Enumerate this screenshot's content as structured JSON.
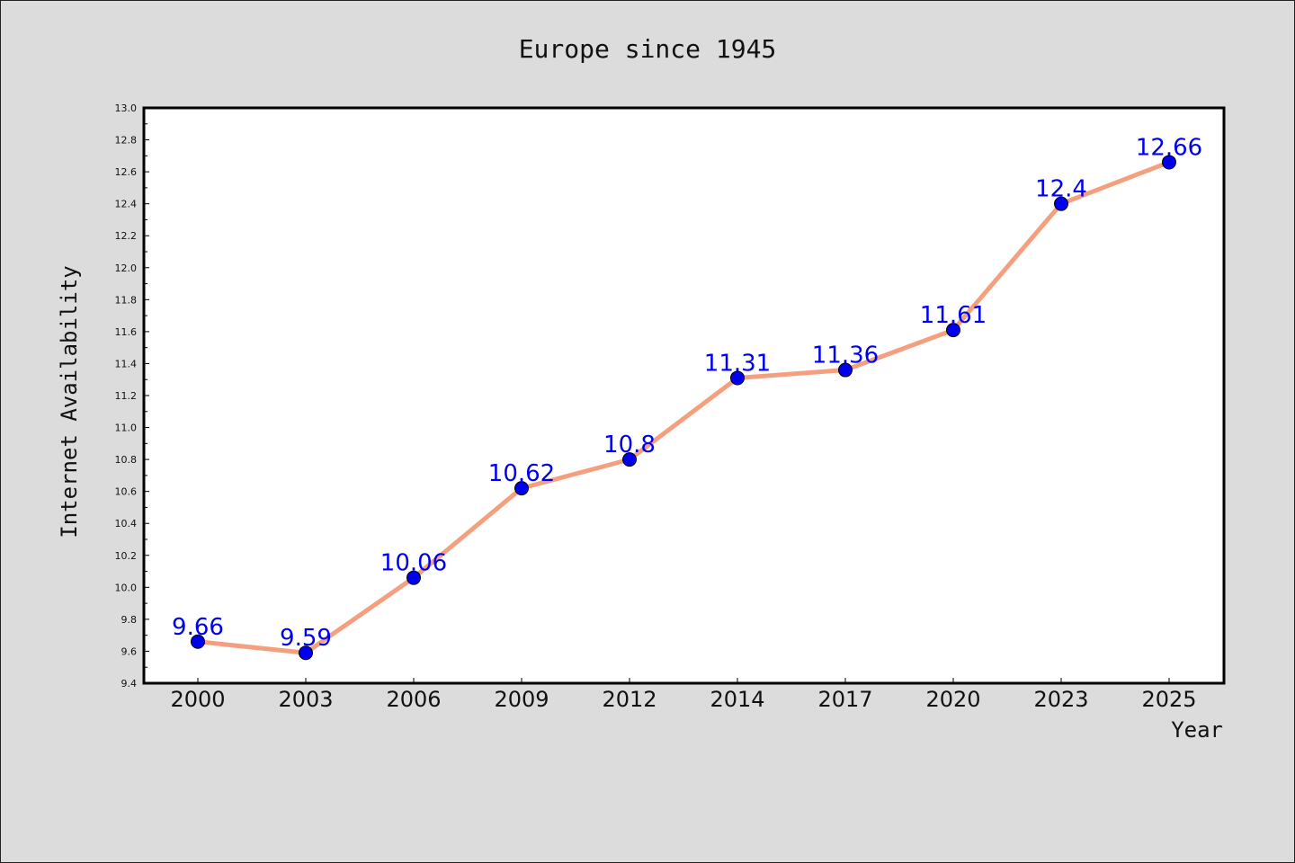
{
  "chart_data": {
    "type": "line",
    "title": "Europe since 1945",
    "xlabel": "Year",
    "ylabel": "Internet Availability",
    "categories": [
      "2000",
      "2003",
      "2006",
      "2009",
      "2012",
      "2014",
      "2017",
      "2020",
      "2023",
      "2025"
    ],
    "series": [
      {
        "values": [
          9.66,
          9.59,
          10.06,
          10.62,
          10.8,
          11.31,
          11.36,
          11.61,
          12.4,
          12.66
        ],
        "labels": [
          "9.66",
          "9.59",
          "10.06",
          "10.62",
          "10.8",
          "11.31",
          "11.36",
          "11.61",
          "12.4",
          "12.66"
        ]
      }
    ],
    "ylim": [
      9.4,
      13.0
    ],
    "yticks": [
      "9.4",
      "9.6",
      "9.8",
      "10.0",
      "10.2",
      "10.4",
      "10.6",
      "10.8",
      "11.0",
      "11.2",
      "11.4",
      "11.6",
      "11.8",
      "12.0",
      "12.2",
      "12.4",
      "12.6",
      "12.8",
      "13.0"
    ],
    "grid": false,
    "colors": {
      "line": "#f4a07f",
      "marker": "#0000ee",
      "label": "#0000ee",
      "background": "#dcdcdc",
      "plot_background": "#ffffff"
    }
  }
}
